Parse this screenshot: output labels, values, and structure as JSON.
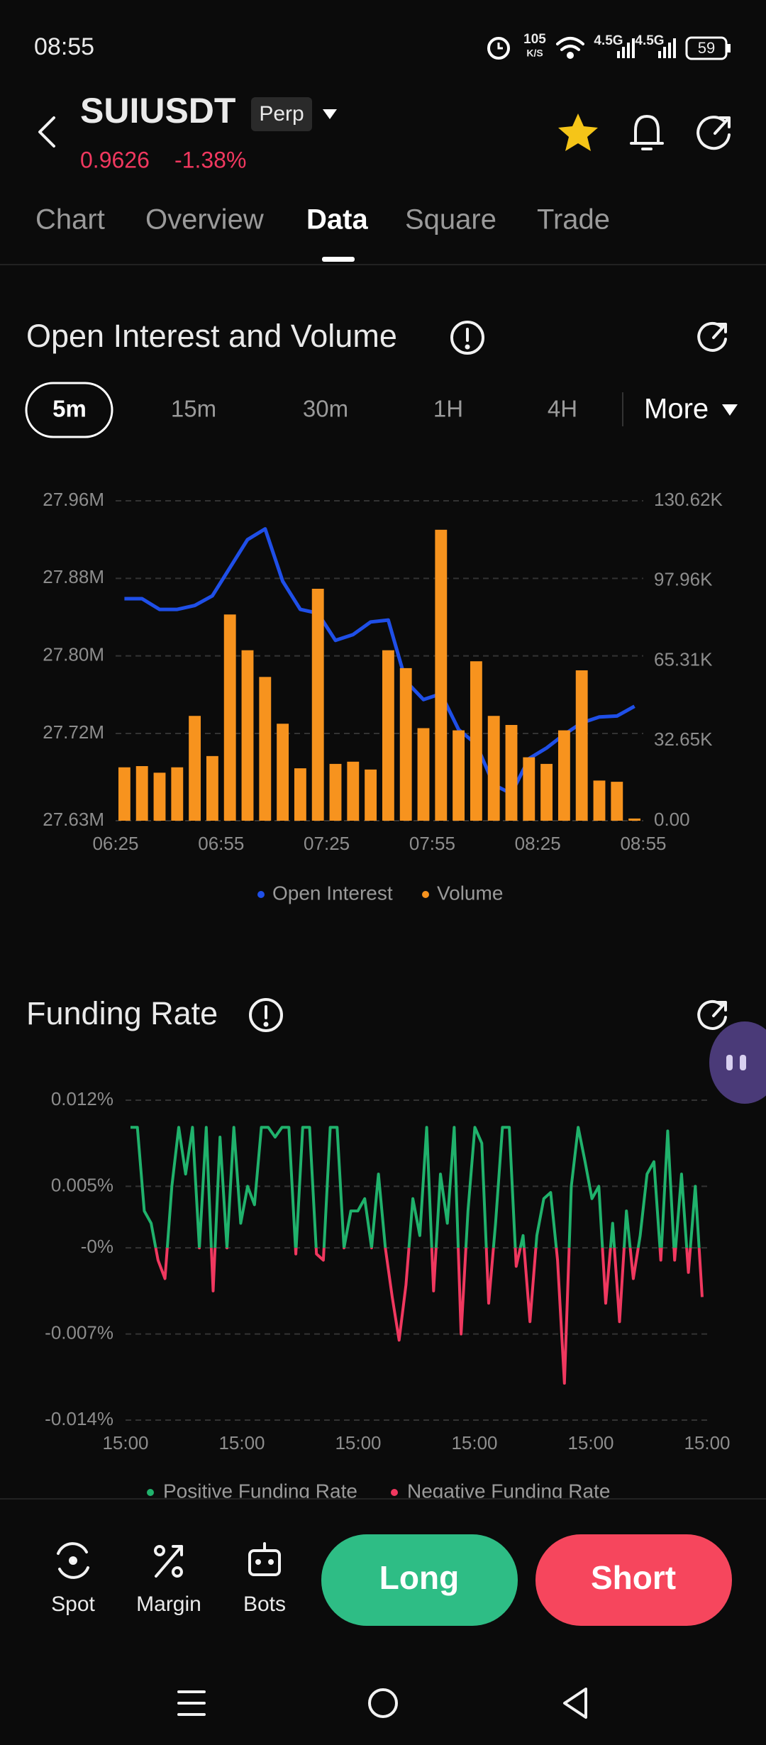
{
  "status_bar": {
    "time": "08:55",
    "speed": "105",
    "speed_unit": "K/S",
    "network1": "4.5G",
    "network2": "4.5G",
    "battery": "59"
  },
  "header": {
    "symbol": "SUIUSDT",
    "badge": "Perp",
    "price": "0.9626",
    "change": "-1.38%"
  },
  "tabs": [
    "Chart",
    "Overview",
    "Data",
    "Square",
    "Trade"
  ],
  "active_tab": 2,
  "intervals": [
    "5m",
    "15m",
    "30m",
    "1H",
    "4H",
    "More"
  ],
  "active_interval": 0,
  "chart_data": [
    {
      "type": "combo",
      "title": "Open Interest and Volume",
      "x_labels": [
        "06:25",
        "06:55",
        "07:25",
        "07:55",
        "08:25",
        "08:55"
      ],
      "series": [
        {
          "name": "Open Interest",
          "color": "#1f4fe8",
          "type": "line",
          "axis": "y",
          "values": [
            27.859,
            27.859,
            27.848,
            27.848,
            27.852,
            27.862,
            27.891,
            27.92,
            27.931,
            27.877,
            27.848,
            27.844,
            27.816,
            27.822,
            27.835,
            27.837,
            27.774,
            27.755,
            27.761,
            27.724,
            27.709,
            27.667,
            27.658,
            27.694,
            27.705,
            27.719,
            27.731,
            27.737,
            27.738,
            27.748
          ]
        },
        {
          "name": "Volume",
          "color": "#f7931e",
          "type": "bar",
          "axis": "y2",
          "values": [
            21.8,
            22.3,
            19.6,
            21.8,
            42.8,
            26.4,
            84.2,
            69.6,
            58.7,
            39.6,
            21.4,
            94.7,
            23.2,
            24.1,
            20.9,
            69.6,
            62.3,
            37.8,
            118.8,
            36.9,
            65.1,
            42.8,
            39.1,
            25.9,
            23.2,
            36.9,
            61.4,
            16.4,
            15.9,
            0.9
          ]
        }
      ],
      "ylim": [
        27.63,
        27.96
      ],
      "yticks": [
        {
          "value": 27.63,
          "label": "27.63M"
        },
        {
          "value": 27.72,
          "label": "27.72M"
        },
        {
          "value": 27.8,
          "label": "27.80M"
        },
        {
          "value": 27.88,
          "label": "27.88M"
        },
        {
          "value": 27.96,
          "label": "27.96M"
        }
      ],
      "y2lim": [
        0,
        130.62
      ],
      "y2ticks": [
        {
          "value": 0,
          "label": "0.00"
        },
        {
          "value": 32.65,
          "label": "32.65K"
        },
        {
          "value": 65.31,
          "label": "65.31K"
        },
        {
          "value": 97.96,
          "label": "97.96K"
        },
        {
          "value": 130.62,
          "label": "130.62K"
        }
      ],
      "grid": true
    },
    {
      "type": "line",
      "title": "Funding Rate",
      "x_labels": [
        "15:00",
        "15:00",
        "15:00",
        "15:00",
        "15:00",
        "15:00"
      ],
      "values": [
        0.0098,
        0.0098,
        0.003,
        0.002,
        -0.001,
        -0.0025,
        0.005,
        0.0098,
        0.006,
        0.0098,
        0.0,
        0.0098,
        -0.0035,
        0.009,
        0.0,
        0.0098,
        0.002,
        0.005,
        0.0035,
        0.0098,
        0.0098,
        0.009,
        0.0098,
        0.0098,
        -0.0005,
        0.0098,
        0.0098,
        -0.0005,
        -0.001,
        0.0098,
        0.0098,
        0.0,
        0.003,
        0.003,
        0.004,
        0.0,
        0.006,
        0.0,
        -0.004,
        -0.0075,
        -0.003,
        0.004,
        0.001,
        0.0098,
        -0.0035,
        0.006,
        0.002,
        0.0098,
        -0.007,
        0.003,
        0.0098,
        0.0085,
        -0.0045,
        0.002,
        0.0098,
        0.0098,
        -0.0015,
        0.001,
        -0.006,
        0.001,
        0.004,
        0.0045,
        -0.001,
        -0.011,
        0.005,
        0.0098,
        0.007,
        0.004,
        0.005,
        -0.0045,
        0.002,
        -0.006,
        0.003,
        -0.0025,
        0.001,
        0.006,
        0.007,
        -0.001,
        0.0095,
        -0.001,
        0.006,
        -0.002,
        0.005,
        -0.004
      ],
      "ylim": [
        -0.014,
        0.012
      ],
      "yticks": [
        {
          "value": -0.014,
          "label": "-0.014%"
        },
        {
          "value": -0.007,
          "label": "-0.007%"
        },
        {
          "value": 0,
          "label": "-0%"
        },
        {
          "value": 0.005,
          "label": "0.005%"
        },
        {
          "value": 0.012,
          "label": "0.012%"
        }
      ],
      "grid": true,
      "legend": [
        {
          "name": "Positive Funding Rate",
          "color": "#20b26c"
        },
        {
          "name": "Negative Funding Rate",
          "color": "#f0385f"
        }
      ]
    }
  ],
  "bottom_bar": {
    "actions": [
      "Spot",
      "Margin",
      "Bots"
    ],
    "long": "Long",
    "short": "Short"
  }
}
